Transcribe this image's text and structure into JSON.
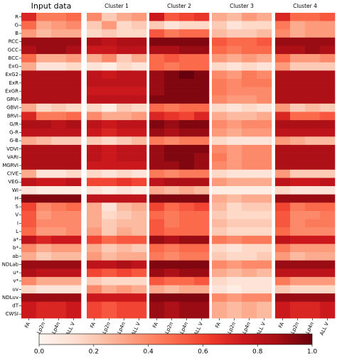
{
  "chart_data": {
    "type": "heatmap",
    "colormap": "Reds",
    "rows": [
      "R",
      "G",
      "B",
      "RCC",
      "GCC",
      "BCC",
      "ExG",
      "ExG2",
      "ExR",
      "ExGR",
      "GRVI",
      "GBVI",
      "BRVI",
      "G/R",
      "G-R",
      "G-B",
      "VDVI",
      "VARI",
      "MGRVI",
      "CIVE",
      "VEG",
      "WI",
      "H",
      "S",
      "V",
      "I",
      "L",
      "a*",
      "b*",
      "ab",
      "NDLab",
      "u*",
      "v*",
      "uv",
      "NDLuv",
      "dT",
      "CWSI"
    ],
    "columns": [
      "FA",
      "Lp2n",
      "Lp4n",
      "ALL V"
    ],
    "panels": [
      {
        "title": "Input data",
        "color": "#000000",
        "values": [
          [
            0.7,
            0.45,
            0.45,
            0.5
          ],
          [
            0.5,
            0.3,
            0.35,
            0.4
          ],
          [
            0.35,
            0.25,
            0.3,
            0.3
          ],
          [
            0.9,
            0.9,
            0.9,
            0.9
          ],
          [
            0.85,
            0.9,
            0.9,
            0.85
          ],
          [
            0.5,
            0.3,
            0.3,
            0.35
          ],
          [
            0.3,
            0.1,
            0.1,
            0.15
          ],
          [
            0.85,
            0.85,
            0.85,
            0.85
          ],
          [
            0.85,
            0.85,
            0.85,
            0.85
          ],
          [
            0.85,
            0.85,
            0.85,
            0.85
          ],
          [
            0.85,
            0.85,
            0.85,
            0.85
          ],
          [
            0.3,
            0.15,
            0.2,
            0.15
          ],
          [
            0.7,
            0.45,
            0.45,
            0.5
          ],
          [
            0.85,
            0.85,
            0.8,
            0.85
          ],
          [
            0.8,
            0.8,
            0.8,
            0.8
          ],
          [
            0.3,
            0.25,
            0.2,
            0.2
          ],
          [
            0.85,
            0.85,
            0.85,
            0.85
          ],
          [
            0.85,
            0.85,
            0.85,
            0.85
          ],
          [
            0.85,
            0.85,
            0.85,
            0.85
          ],
          [
            0.3,
            0.1,
            0.1,
            0.15
          ],
          [
            0.8,
            0.75,
            0.75,
            0.8
          ],
          [
            0.1,
            0.05,
            0.05,
            0.05
          ],
          [
            0.95,
            0.95,
            0.95,
            0.95
          ],
          [
            0.6,
            0.4,
            0.45,
            0.5
          ],
          [
            0.55,
            0.35,
            0.4,
            0.4
          ],
          [
            0.55,
            0.4,
            0.4,
            0.4
          ],
          [
            0.5,
            0.35,
            0.35,
            0.4
          ],
          [
            0.8,
            0.7,
            0.75,
            0.75
          ],
          [
            0.4,
            0.3,
            0.35,
            0.35
          ],
          [
            0.3,
            0.2,
            0.25,
            0.25
          ],
          [
            0.9,
            0.9,
            0.9,
            0.9
          ],
          [
            0.85,
            0.8,
            0.8,
            0.8
          ],
          [
            0.4,
            0.3,
            0.3,
            0.3
          ],
          [
            0.15,
            0.1,
            0.1,
            0.1
          ],
          [
            0.9,
            0.9,
            0.9,
            0.9
          ],
          [
            0.75,
            0.7,
            0.7,
            0.75
          ],
          [
            0.75,
            0.7,
            0.7,
            0.75
          ]
        ]
      },
      {
        "title": "Cluster 1",
        "color": "#00008b",
        "values": [
          [
            0.4,
            0.2,
            0.3,
            0.35
          ],
          [
            0.2,
            0.35,
            0.15,
            0.2
          ],
          [
            0.15,
            0.2,
            0.15,
            0.15
          ],
          [
            0.85,
            0.8,
            0.85,
            0.85
          ],
          [
            0.75,
            0.75,
            0.8,
            0.8
          ],
          [
            0.3,
            0.4,
            0.2,
            0.3
          ],
          [
            0.1,
            0.05,
            0.15,
            0.1
          ],
          [
            0.8,
            0.75,
            0.8,
            0.8
          ],
          [
            0.8,
            0.8,
            0.8,
            0.8
          ],
          [
            0.75,
            0.75,
            0.75,
            0.75
          ],
          [
            0.8,
            0.8,
            0.8,
            0.8
          ],
          [
            0.15,
            0.05,
            0.2,
            0.15
          ],
          [
            0.4,
            0.3,
            0.3,
            0.35
          ],
          [
            0.8,
            0.75,
            0.8,
            0.8
          ],
          [
            0.75,
            0.7,
            0.75,
            0.75
          ],
          [
            0.2,
            0.15,
            0.2,
            0.25
          ],
          [
            0.8,
            0.75,
            0.8,
            0.8
          ],
          [
            0.8,
            0.75,
            0.8,
            0.8
          ],
          [
            0.75,
            0.75,
            0.75,
            0.75
          ],
          [
            0.15,
            0.1,
            0.15,
            0.1
          ],
          [
            0.6,
            0.6,
            0.65,
            0.6
          ],
          [
            0.1,
            0.05,
            0.1,
            0.05
          ],
          [
            0.8,
            0.8,
            0.8,
            0.8
          ],
          [
            0.3,
            0.1,
            0.25,
            0.3
          ],
          [
            0.3,
            0.15,
            0.2,
            0.25
          ],
          [
            0.3,
            0.2,
            0.25,
            0.25
          ],
          [
            0.35,
            0.2,
            0.3,
            0.25
          ],
          [
            0.6,
            0.5,
            0.55,
            0.55
          ],
          [
            0.3,
            0.2,
            0.25,
            0.2
          ],
          [
            0.35,
            0.25,
            0.3,
            0.3
          ],
          [
            0.8,
            0.8,
            0.85,
            0.8
          ],
          [
            0.6,
            0.55,
            0.6,
            0.55
          ],
          [
            0.2,
            0.15,
            0.15,
            0.15
          ],
          [
            0.4,
            0.3,
            0.35,
            0.3
          ],
          [
            0.75,
            0.75,
            0.75,
            0.75
          ],
          [
            0.6,
            0.55,
            0.6,
            0.6
          ],
          [
            0.6,
            0.55,
            0.6,
            0.6
          ]
        ]
      },
      {
        "title": "Cluster 2",
        "color": "#00bfff",
        "values": [
          [
            0.75,
            0.55,
            0.6,
            0.65
          ],
          [
            0.2,
            0.1,
            0.15,
            0.15
          ],
          [
            0.55,
            0.45,
            0.5,
            0.5
          ],
          [
            0.95,
            0.95,
            0.95,
            0.95
          ],
          [
            0.85,
            0.85,
            0.9,
            0.9
          ],
          [
            0.5,
            0.55,
            0.5,
            0.5
          ],
          [
            0.5,
            0.45,
            0.5,
            0.5
          ],
          [
            0.9,
            0.95,
            1,
            0.95
          ],
          [
            0.9,
            0.95,
            0.95,
            0.95
          ],
          [
            0.9,
            0.95,
            0.95,
            0.95
          ],
          [
            0.95,
            0.95,
            0.95,
            0.95
          ],
          [
            0.5,
            0.45,
            0.5,
            0.5
          ],
          [
            0.7,
            0.65,
            0.6,
            0.7
          ],
          [
            0.95,
            0.9,
            0.95,
            0.95
          ],
          [
            0.9,
            0.85,
            0.9,
            0.9
          ],
          [
            0.45,
            0.4,
            0.45,
            0.45
          ],
          [
            0.9,
            0.95,
            0.95,
            0.95
          ],
          [
            0.9,
            0.95,
            0.95,
            0.9
          ],
          [
            0.9,
            0.9,
            0.95,
            0.9
          ],
          [
            0.45,
            0.4,
            0.45,
            0.45
          ],
          [
            0.8,
            0.85,
            0.85,
            0.85
          ],
          [
            0.3,
            0.25,
            0.3,
            0.25
          ],
          [
            0.95,
            0.95,
            0.95,
            0.95
          ],
          [
            0.6,
            0.5,
            0.55,
            0.6
          ],
          [
            0.5,
            0.45,
            0.5,
            0.5
          ],
          [
            0.55,
            0.45,
            0.5,
            0.5
          ],
          [
            0.55,
            0.5,
            0.5,
            0.5
          ],
          [
            0.9,
            0.85,
            0.9,
            0.9
          ],
          [
            0.5,
            0.45,
            0.5,
            0.5
          ],
          [
            0.45,
            0.4,
            0.45,
            0.45
          ],
          [
            0.95,
            0.95,
            0.95,
            0.95
          ],
          [
            0.9,
            0.85,
            0.9,
            0.9
          ],
          [
            0.55,
            0.5,
            0.5,
            0.55
          ],
          [
            0.3,
            0.25,
            0.3,
            0.3
          ],
          [
            0.95,
            0.95,
            0.95,
            0.95
          ],
          [
            0.9,
            0.85,
            0.9,
            0.9
          ],
          [
            0.9,
            0.85,
            0.9,
            0.9
          ]
        ]
      },
      {
        "title": "Cluster 3",
        "color": "#ffd700",
        "values": [
          [
            0.3,
            0.25,
            0.35,
            0.3
          ],
          [
            0.2,
            0.1,
            0.15,
            0.15
          ],
          [
            0.25,
            0.2,
            0.2,
            0.25
          ],
          [
            0.55,
            0.5,
            0.5,
            0.55
          ],
          [
            0.5,
            0.45,
            0.5,
            0.5
          ],
          [
            0.35,
            0.3,
            0.35,
            0.3
          ],
          [
            0.15,
            0.1,
            0.15,
            0.1
          ],
          [
            0.4,
            0.35,
            0.45,
            0.4
          ],
          [
            0.45,
            0.4,
            0.45,
            0.45
          ],
          [
            0.45,
            0.4,
            0.4,
            0.4
          ],
          [
            0.4,
            0.35,
            0.35,
            0.4
          ],
          [
            0.15,
            0.1,
            0.15,
            0.1
          ],
          [
            0.3,
            0.25,
            0.25,
            0.3
          ],
          [
            0.4,
            0.35,
            0.4,
            0.4
          ],
          [
            0.35,
            0.3,
            0.35,
            0.35
          ],
          [
            0.15,
            0.1,
            0.1,
            0.1
          ],
          [
            0.4,
            0.35,
            0.4,
            0.4
          ],
          [
            0.45,
            0.35,
            0.4,
            0.4
          ],
          [
            0.4,
            0.35,
            0.4,
            0.4
          ],
          [
            0.15,
            0.1,
            0.1,
            0.1
          ],
          [
            0.35,
            0.3,
            0.3,
            0.3
          ],
          [
            0.05,
            0.05,
            0.05,
            0.05
          ],
          [
            0.3,
            0.25,
            0.3,
            0.3
          ],
          [
            0.25,
            0.15,
            0.2,
            0.2
          ],
          [
            0.2,
            0.15,
            0.15,
            0.15
          ],
          [
            0.25,
            0.2,
            0.2,
            0.2
          ],
          [
            0.2,
            0.15,
            0.15,
            0.15
          ],
          [
            0.45,
            0.4,
            0.45,
            0.45
          ],
          [
            0.15,
            0.1,
            0.15,
            0.15
          ],
          [
            0.2,
            0.15,
            0.15,
            0.2
          ],
          [
            0.4,
            0.35,
            0.4,
            0.4
          ],
          [
            0.3,
            0.25,
            0.3,
            0.25
          ],
          [
            0.15,
            0.1,
            0.1,
            0.1
          ],
          [
            0.1,
            0.05,
            0.1,
            0.1
          ],
          [
            0.4,
            0.35,
            0.4,
            0.4
          ],
          [
            0.3,
            0.25,
            0.3,
            0.25
          ],
          [
            0.3,
            0.25,
            0.3,
            0.25
          ]
        ]
      },
      {
        "title": "Cluster 4",
        "color": "#b22222",
        "values": [
          [
            0.7,
            0.5,
            0.5,
            0.55
          ],
          [
            0.45,
            0.3,
            0.35,
            0.35
          ],
          [
            0.4,
            0.3,
            0.35,
            0.35
          ],
          [
            0.9,
            0.9,
            0.9,
            0.9
          ],
          [
            0.85,
            0.85,
            0.9,
            0.85
          ],
          [
            0.5,
            0.35,
            0.35,
            0.4
          ],
          [
            0.35,
            0.2,
            0.2,
            0.2
          ],
          [
            0.85,
            0.85,
            0.85,
            0.85
          ],
          [
            0.85,
            0.85,
            0.85,
            0.85
          ],
          [
            0.85,
            0.85,
            0.85,
            0.85
          ],
          [
            0.85,
            0.85,
            0.85,
            0.85
          ],
          [
            0.35,
            0.2,
            0.25,
            0.2
          ],
          [
            0.7,
            0.5,
            0.5,
            0.55
          ],
          [
            0.85,
            0.85,
            0.85,
            0.85
          ],
          [
            0.8,
            0.8,
            0.8,
            0.8
          ],
          [
            0.35,
            0.3,
            0.25,
            0.25
          ],
          [
            0.85,
            0.85,
            0.85,
            0.85
          ],
          [
            0.85,
            0.85,
            0.85,
            0.85
          ],
          [
            0.85,
            0.85,
            0.85,
            0.85
          ],
          [
            0.35,
            0.2,
            0.2,
            0.2
          ],
          [
            0.8,
            0.75,
            0.75,
            0.8
          ],
          [
            0.15,
            0.1,
            0.1,
            0.1
          ],
          [
            0.9,
            0.9,
            0.9,
            0.9
          ],
          [
            0.6,
            0.45,
            0.5,
            0.5
          ],
          [
            0.55,
            0.4,
            0.4,
            0.45
          ],
          [
            0.55,
            0.4,
            0.45,
            0.45
          ],
          [
            0.5,
            0.4,
            0.4,
            0.4
          ],
          [
            0.8,
            0.75,
            0.75,
            0.75
          ],
          [
            0.45,
            0.35,
            0.35,
            0.35
          ],
          [
            0.35,
            0.25,
            0.3,
            0.3
          ],
          [
            0.9,
            0.9,
            0.9,
            0.9
          ],
          [
            0.8,
            0.8,
            0.8,
            0.8
          ],
          [
            0.45,
            0.35,
            0.35,
            0.35
          ],
          [
            0.2,
            0.15,
            0.15,
            0.15
          ],
          [
            0.9,
            0.9,
            0.9,
            0.9
          ],
          [
            0.75,
            0.7,
            0.7,
            0.75
          ],
          [
            0.75,
            0.7,
            0.7,
            0.75
          ]
        ]
      }
    ],
    "colorbar": {
      "lim": [
        0,
        1
      ],
      "ticks": [
        {
          "value": 0,
          "label": "0.0"
        },
        0.2,
        0.4,
        0.6,
        0.8,
        {
          "value": 1,
          "label": "1.0"
        }
      ]
    }
  }
}
